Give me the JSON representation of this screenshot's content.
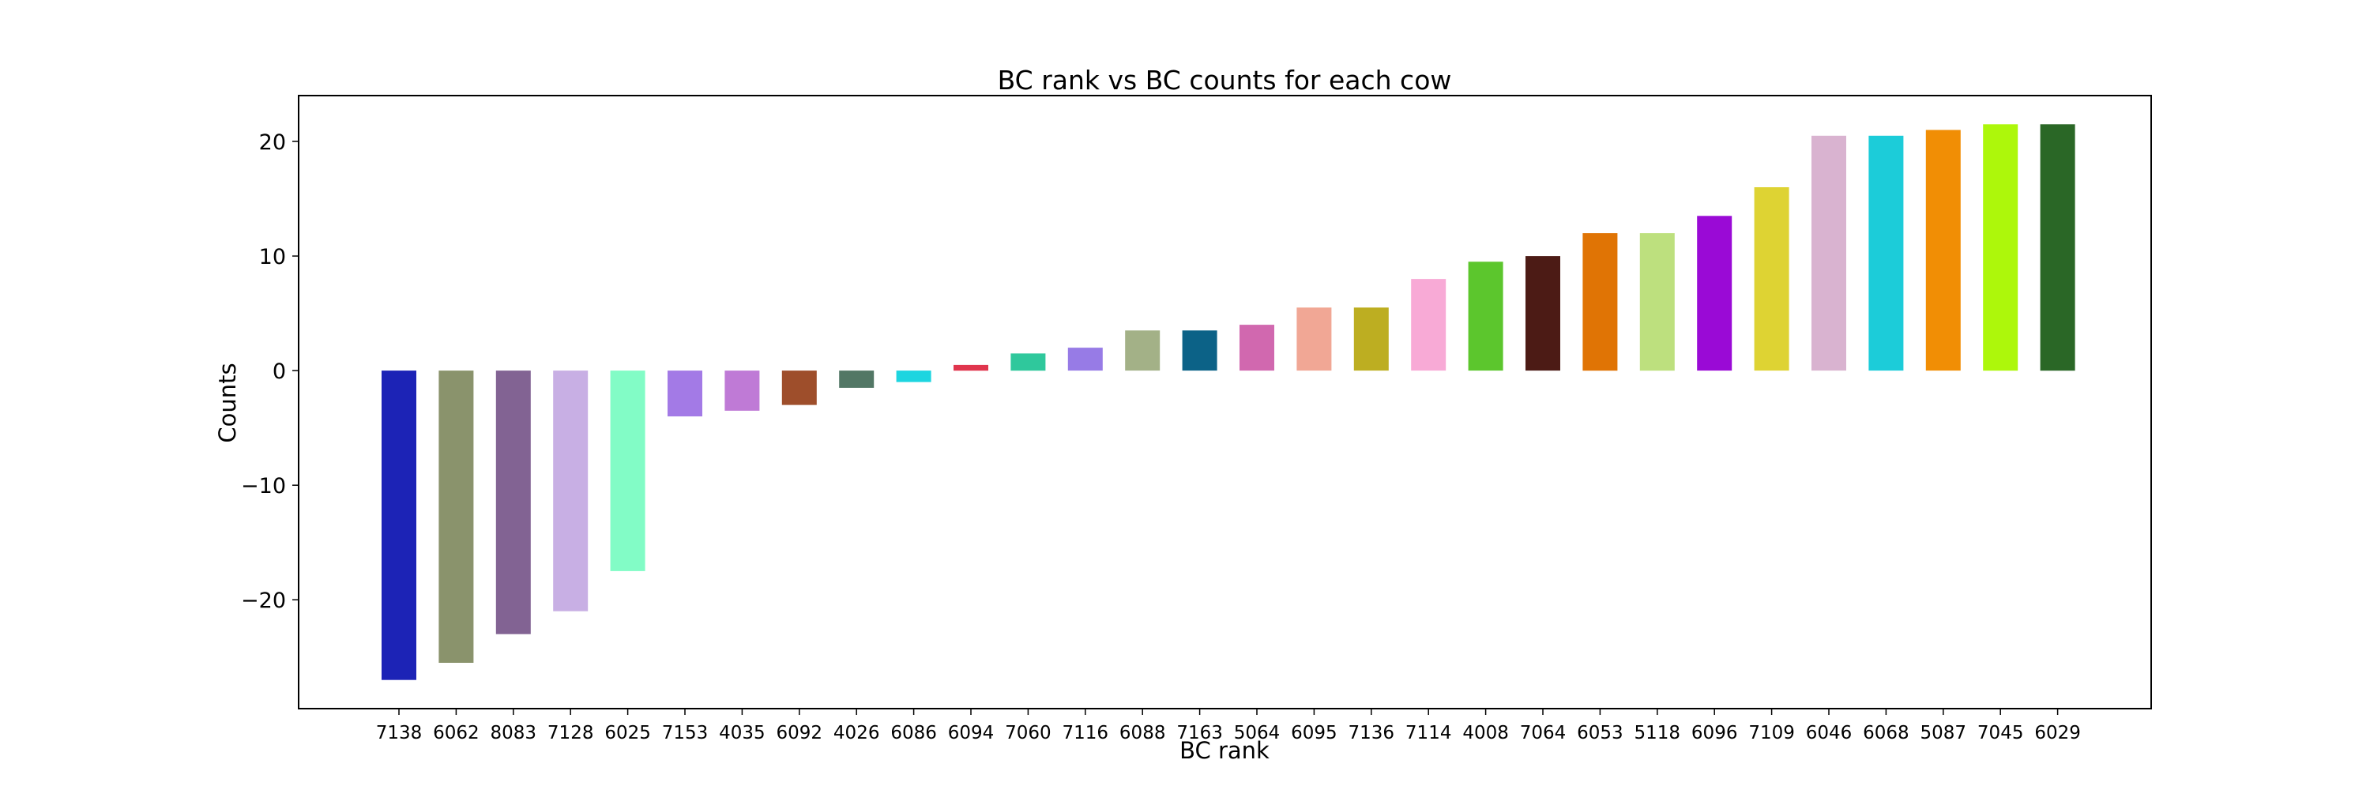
{
  "chart_data": {
    "type": "bar",
    "title": "BC rank vs BC counts for each cow",
    "xlabel": "BC rank",
    "ylabel": "Counts",
    "ylim": [
      -29.5,
      24
    ],
    "yticks": [
      -20,
      -10,
      0,
      10,
      20
    ],
    "ytick_labels": [
      "−20",
      "−10",
      "0",
      "10",
      "20"
    ],
    "grid": false,
    "legend": "none",
    "categories": [
      "7138",
      "6062",
      "8083",
      "7128",
      "6025",
      "7153",
      "4035",
      "6092",
      "4026",
      "6086",
      "6094",
      "7060",
      "7116",
      "6088",
      "7163",
      "5064",
      "6095",
      "7136",
      "7114",
      "4008",
      "7064",
      "6053",
      "5118",
      "6096",
      "7109",
      "6046",
      "6068",
      "5087",
      "7045",
      "6029"
    ],
    "values": [
      -27,
      -25.5,
      -23,
      -21,
      -17.5,
      -4,
      -3.5,
      -3,
      -1.5,
      -1,
      0.5,
      1.5,
      2,
      3.5,
      3.5,
      4,
      5.5,
      5.5,
      8,
      9.5,
      10,
      12,
      12,
      13.5,
      16,
      20.5,
      20.5,
      21,
      21.5,
      21.5
    ],
    "colors": [
      "#1c23b6",
      "#8a936c",
      "#826393",
      "#c8afe4",
      "#82fcc6",
      "#a37ae6",
      "#bf7ad6",
      "#9e4e2b",
      "#527765",
      "#1dd5e0",
      "#e0354d",
      "#2fc89c",
      "#977be6",
      "#a3b187",
      "#0c6287",
      "#d168af",
      "#f1a795",
      "#bdae21",
      "#f8aad6",
      "#5cc62d",
      "#4c1b15",
      "#e07405",
      "#bde07e",
      "#9a0ad6",
      "#ded333",
      "#d9b3d0",
      "#1cccd9",
      "#f18e05",
      "#adf70b",
      "#2a6726"
    ]
  }
}
